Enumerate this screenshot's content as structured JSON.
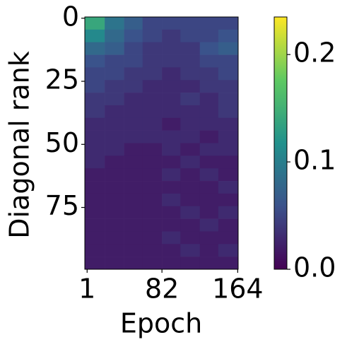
{
  "chart_data": {
    "type": "heatmap",
    "xlabel": "Epoch",
    "ylabel": "Diagonal rank",
    "colormap": "viridis",
    "x_edges": [
      -1.5,
      20,
      41,
      61,
      82,
      102,
      123,
      143,
      164.5
    ],
    "y_edges": [
      -0.5,
      4.5,
      9.5,
      14.5,
      19.5,
      24.5,
      29.5,
      34.5,
      39.5,
      44.5,
      49.5,
      54.5,
      59.5,
      64.5,
      69.5,
      74.5,
      79.5,
      84.5,
      89.5,
      94.5,
      99.5
    ],
    "values": [
      [
        0.14,
        0.09,
        0.07,
        0.05,
        0.05,
        0.05,
        0.05,
        0.05
      ],
      [
        0.11,
        0.08,
        0.06,
        0.05,
        0.04,
        0.05,
        0.05,
        0.06
      ],
      [
        0.08,
        0.07,
        0.05,
        0.04,
        0.04,
        0.04,
        0.06,
        0.07
      ],
      [
        0.06,
        0.05,
        0.05,
        0.04,
        0.04,
        0.04,
        0.05,
        0.05
      ],
      [
        0.05,
        0.05,
        0.04,
        0.04,
        0.03,
        0.04,
        0.04,
        0.05
      ],
      [
        0.05,
        0.04,
        0.04,
        0.03,
        0.03,
        0.03,
        0.04,
        0.04
      ],
      [
        0.04,
        0.04,
        0.03,
        0.03,
        0.03,
        0.04,
        0.03,
        0.04
      ],
      [
        0.04,
        0.03,
        0.03,
        0.03,
        0.03,
        0.03,
        0.03,
        0.04
      ],
      [
        0.03,
        0.03,
        0.03,
        0.03,
        0.02,
        0.03,
        0.03,
        0.03
      ],
      [
        0.03,
        0.03,
        0.03,
        0.03,
        0.03,
        0.03,
        0.02,
        0.03
      ],
      [
        0.03,
        0.03,
        0.02,
        0.02,
        0.03,
        0.02,
        0.03,
        0.03
      ],
      [
        0.03,
        0.02,
        0.02,
        0.02,
        0.02,
        0.03,
        0.02,
        0.02
      ],
      [
        0.02,
        0.02,
        0.02,
        0.02,
        0.03,
        0.02,
        0.03,
        0.02
      ],
      [
        0.02,
        0.02,
        0.02,
        0.02,
        0.02,
        0.02,
        0.02,
        0.03
      ],
      [
        0.02,
        0.02,
        0.02,
        0.02,
        0.03,
        0.02,
        0.02,
        0.02
      ],
      [
        0.02,
        0.02,
        0.02,
        0.02,
        0.02,
        0.03,
        0.02,
        0.03
      ],
      [
        0.02,
        0.02,
        0.02,
        0.02,
        0.02,
        0.02,
        0.03,
        0.02
      ],
      [
        0.02,
        0.02,
        0.02,
        0.02,
        0.03,
        0.02,
        0.02,
        0.02
      ],
      [
        0.02,
        0.02,
        0.02,
        0.02,
        0.02,
        0.03,
        0.02,
        0.03
      ],
      [
        0.02,
        0.02,
        0.02,
        0.02,
        0.02,
        0.02,
        0.02,
        0.02
      ]
    ],
    "xlim": [
      -1.5,
      164.5
    ],
    "xticks": [
      1,
      82,
      164
    ],
    "ylim": [
      -0.5,
      99.5
    ],
    "yticks": [
      0,
      25,
      50,
      75
    ],
    "clim": [
      0,
      0.235
    ],
    "cticks": [
      {
        "value": 0,
        "label": "0.0"
      },
      0.1,
      0.2
    ]
  }
}
